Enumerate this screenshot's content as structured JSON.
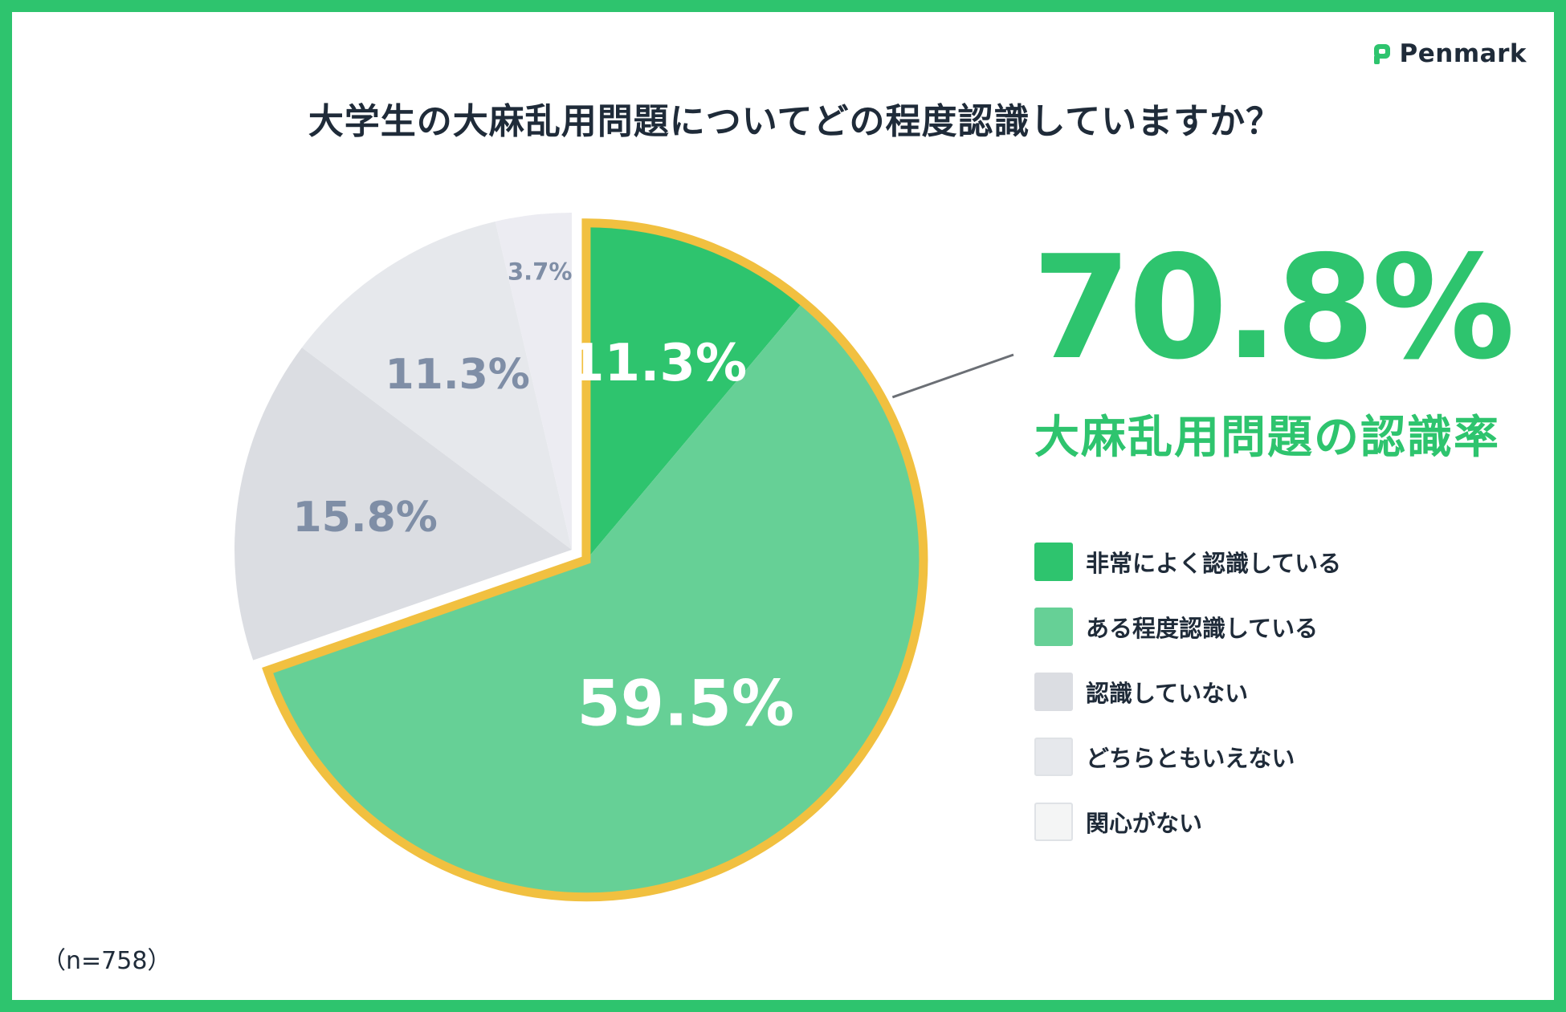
{
  "brand": {
    "name": "Penmark"
  },
  "title": "大学生の大麻乱用問題についてどの程度認識していますか？",
  "highlight": {
    "value": "70.8%",
    "label": "大麻乱用問題の認識率"
  },
  "sample_note": "（n=758）",
  "colors": {
    "frame": "#2ec46e",
    "accent": "#2ec46e",
    "highlight_border": "#f1c040",
    "text": "#1f2b39"
  },
  "chart_data": {
    "type": "pie",
    "title": "大学生の大麻乱用問題についてどの程度認識していますか？",
    "start_angle_deg": 0,
    "direction": "clockwise",
    "highlighted_group": [
      "非常によく認識している",
      "ある程度認識している"
    ],
    "highlighted_total": 70.8,
    "slices": [
      {
        "label": "非常によく認識している",
        "value": 11.3,
        "display": "11.3%",
        "color": "#2ec46e",
        "text_color": "#ffffff"
      },
      {
        "label": "ある程度認識している",
        "value": 59.5,
        "display": "59.5%",
        "color": "#66d096",
        "text_color": "#ffffff"
      },
      {
        "label": "認識していない",
        "value": 15.8,
        "display": "15.8%",
        "color": "#dbdde2",
        "text_color": "#7f8ea6"
      },
      {
        "label": "どちらともいえない",
        "value": 11.3,
        "display": "11.3%",
        "color": "#e6e8ec",
        "text_color": "#7f8ea6"
      },
      {
        "label": "関心がない",
        "value": 3.7,
        "display": "3.7%",
        "color": "#ececf2",
        "text_color": "#7f8ea6"
      }
    ],
    "legend": {
      "placement": "right",
      "items": [
        {
          "label": "非常によく認識している",
          "color": "#2ec46e"
        },
        {
          "label": "ある程度認識している",
          "color": "#66d096"
        },
        {
          "label": "認識していない",
          "color": "#dbdde2"
        },
        {
          "label": "どちらともいえない",
          "color": "#e6e8ec"
        },
        {
          "label": "関心がない",
          "color": "#f4f5f5"
        }
      ]
    }
  }
}
